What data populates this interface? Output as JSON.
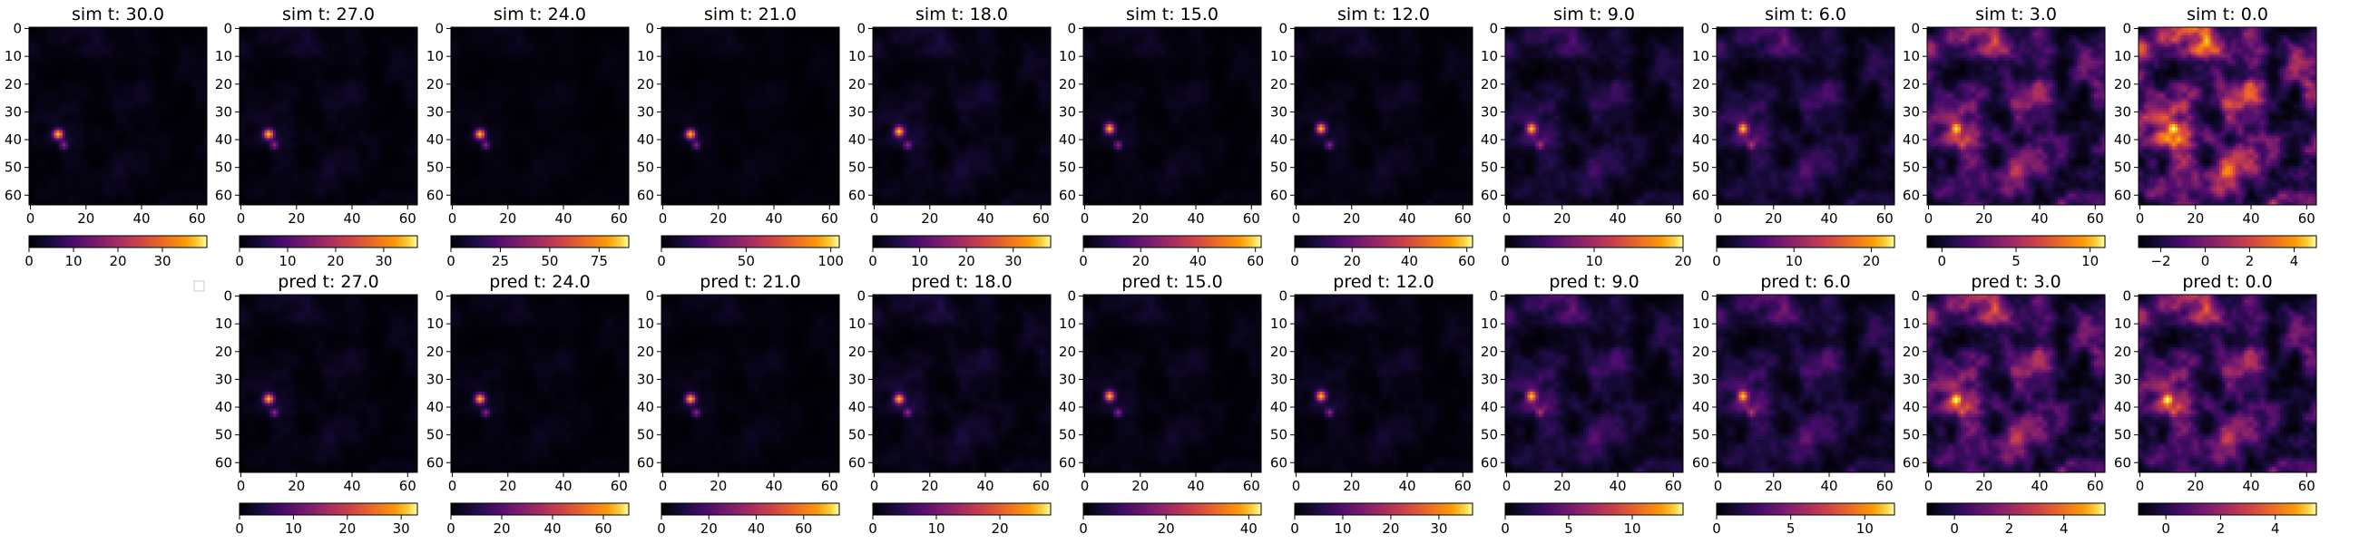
{
  "colors": {
    "background": "#ffffff",
    "axis": "#000000",
    "colormap": "inferno"
  },
  "legend_placeholder": true,
  "chart_data": [
    {
      "type": "heatmap",
      "row": "sim",
      "title": "sim t: 30.0",
      "grid_size": 64,
      "y_ticks": [
        0,
        10,
        20,
        30,
        40,
        50,
        60
      ],
      "x_ticks": [
        0,
        20,
        40,
        60
      ],
      "colorbar": {
        "range": [
          0,
          40
        ],
        "ticks": [
          0,
          10,
          20,
          30
        ]
      },
      "intensity": 0.06,
      "hot_spot": [
        10,
        38
      ]
    },
    {
      "type": "heatmap",
      "row": "sim",
      "title": "sim t: 27.0",
      "grid_size": 64,
      "y_ticks": [
        0,
        10,
        20,
        30,
        40,
        50,
        60
      ],
      "x_ticks": [
        0,
        20,
        40,
        60
      ],
      "colorbar": {
        "range": [
          0,
          37
        ],
        "ticks": [
          0,
          10,
          20,
          30
        ]
      },
      "intensity": 0.07,
      "hot_spot": [
        10,
        38
      ]
    },
    {
      "type": "heatmap",
      "row": "sim",
      "title": "sim t: 24.0",
      "grid_size": 64,
      "y_ticks": [
        0,
        10,
        20,
        30,
        40,
        50,
        60
      ],
      "x_ticks": [
        0,
        20,
        40,
        60
      ],
      "colorbar": {
        "range": [
          0,
          90
        ],
        "ticks": [
          0,
          25,
          50,
          75
        ]
      },
      "intensity": 0.04,
      "hot_spot": [
        10,
        38
      ]
    },
    {
      "type": "heatmap",
      "row": "sim",
      "title": "sim t: 21.0",
      "grid_size": 64,
      "y_ticks": [
        0,
        10,
        20,
        30,
        40,
        50,
        60
      ],
      "x_ticks": [
        0,
        20,
        40,
        60
      ],
      "colorbar": {
        "range": [
          0,
          105
        ],
        "ticks": [
          0,
          50,
          100
        ]
      },
      "intensity": 0.04,
      "hot_spot": [
        10,
        38
      ]
    },
    {
      "type": "heatmap",
      "row": "sim",
      "title": "sim t: 18.0",
      "grid_size": 64,
      "y_ticks": [
        0,
        10,
        20,
        30,
        40,
        50,
        60
      ],
      "x_ticks": [
        0,
        20,
        40,
        60
      ],
      "colorbar": {
        "range": [
          0,
          38
        ],
        "ticks": [
          0,
          10,
          20,
          30
        ]
      },
      "intensity": 0.09,
      "hot_spot": [
        9,
        37
      ]
    },
    {
      "type": "heatmap",
      "row": "sim",
      "title": "sim t: 15.0",
      "grid_size": 64,
      "y_ticks": [
        0,
        10,
        20,
        30,
        40,
        50,
        60
      ],
      "x_ticks": [
        0,
        20,
        40,
        60
      ],
      "colorbar": {
        "range": [
          0,
          62
        ],
        "ticks": [
          0,
          20,
          40,
          60
        ]
      },
      "intensity": 0.06,
      "hot_spot": [
        9,
        36
      ]
    },
    {
      "type": "heatmap",
      "row": "sim",
      "title": "sim t: 12.0",
      "grid_size": 64,
      "y_ticks": [
        0,
        10,
        20,
        30,
        40,
        50,
        60
      ],
      "x_ticks": [
        0,
        20,
        40,
        60
      ],
      "colorbar": {
        "range": [
          0,
          62
        ],
        "ticks": [
          0,
          20,
          40,
          60
        ]
      },
      "intensity": 0.07,
      "hot_spot": [
        9,
        36
      ]
    },
    {
      "type": "heatmap",
      "row": "sim",
      "title": "sim t: 9.0",
      "grid_size": 64,
      "y_ticks": [
        0,
        10,
        20,
        30,
        40,
        50,
        60
      ],
      "x_ticks": [
        0,
        20,
        40,
        60
      ],
      "colorbar": {
        "range": [
          0,
          20
        ],
        "ticks": [
          0,
          10,
          20
        ]
      },
      "intensity": 0.2,
      "hot_spot": [
        9,
        36
      ]
    },
    {
      "type": "heatmap",
      "row": "sim",
      "title": "sim t: 6.0",
      "grid_size": 64,
      "y_ticks": [
        0,
        10,
        20,
        30,
        40,
        50,
        60
      ],
      "x_ticks": [
        0,
        20,
        40,
        60
      ],
      "colorbar": {
        "range": [
          0,
          23
        ],
        "ticks": [
          0,
          10,
          20
        ]
      },
      "intensity": 0.24,
      "hot_spot": [
        9,
        36
      ]
    },
    {
      "type": "heatmap",
      "row": "sim",
      "title": "sim t: 3.0",
      "grid_size": 64,
      "y_ticks": [
        0,
        10,
        20,
        30,
        40,
        50,
        60
      ],
      "x_ticks": [
        0,
        20,
        40,
        60
      ],
      "colorbar": {
        "range": [
          -1,
          11
        ],
        "ticks": [
          0,
          5,
          10
        ]
      },
      "intensity": 0.48,
      "hot_spot": [
        10,
        36
      ]
    },
    {
      "type": "heatmap",
      "row": "sim",
      "title": "sim t: 0.0",
      "grid_size": 64,
      "y_ticks": [
        0,
        10,
        20,
        30,
        40,
        50,
        60
      ],
      "x_ticks": [
        0,
        20,
        40,
        60
      ],
      "colorbar": {
        "range": [
          -3,
          5
        ],
        "ticks": [
          -2,
          0,
          2,
          4
        ]
      },
      "intensity": 0.68,
      "hot_spot": [
        12,
        36
      ]
    },
    {
      "type": "heatmap",
      "row": "pred",
      "title": "pred t: 27.0",
      "grid_size": 64,
      "y_ticks": [
        0,
        10,
        20,
        30,
        40,
        50,
        60
      ],
      "x_ticks": [
        0,
        20,
        40,
        60
      ],
      "colorbar": {
        "range": [
          0,
          33
        ],
        "ticks": [
          0,
          10,
          20,
          30
        ]
      },
      "intensity": 0.07,
      "hot_spot": [
        10,
        37
      ]
    },
    {
      "type": "heatmap",
      "row": "pred",
      "title": "pred t: 24.0",
      "grid_size": 64,
      "y_ticks": [
        0,
        10,
        20,
        30,
        40,
        50,
        60
      ],
      "x_ticks": [
        0,
        20,
        40,
        60
      ],
      "colorbar": {
        "range": [
          0,
          70
        ],
        "ticks": [
          0,
          20,
          40,
          60
        ]
      },
      "intensity": 0.05,
      "hot_spot": [
        10,
        37
      ]
    },
    {
      "type": "heatmap",
      "row": "pred",
      "title": "pred t: 21.0",
      "grid_size": 64,
      "y_ticks": [
        0,
        10,
        20,
        30,
        40,
        50,
        60
      ],
      "x_ticks": [
        0,
        20,
        40,
        60
      ],
      "colorbar": {
        "range": [
          0,
          75
        ],
        "ticks": [
          0,
          20,
          40,
          60
        ]
      },
      "intensity": 0.05,
      "hot_spot": [
        10,
        37
      ]
    },
    {
      "type": "heatmap",
      "row": "pred",
      "title": "pred t: 18.0",
      "grid_size": 64,
      "y_ticks": [
        0,
        10,
        20,
        30,
        40,
        50,
        60
      ],
      "x_ticks": [
        0,
        20,
        40,
        60
      ],
      "colorbar": {
        "range": [
          0,
          28
        ],
        "ticks": [
          0,
          10,
          20
        ]
      },
      "intensity": 0.1,
      "hot_spot": [
        9,
        37
      ]
    },
    {
      "type": "heatmap",
      "row": "pred",
      "title": "pred t: 15.0",
      "grid_size": 64,
      "y_ticks": [
        0,
        10,
        20,
        30,
        40,
        50,
        60
      ],
      "x_ticks": [
        0,
        20,
        40,
        60
      ],
      "colorbar": {
        "range": [
          0,
          43
        ],
        "ticks": [
          0,
          20,
          40
        ]
      },
      "intensity": 0.07,
      "hot_spot": [
        9,
        36
      ]
    },
    {
      "type": "heatmap",
      "row": "pred",
      "title": "pred t: 12.0",
      "grid_size": 64,
      "y_ticks": [
        0,
        10,
        20,
        30,
        40,
        50,
        60
      ],
      "x_ticks": [
        0,
        20,
        40,
        60
      ],
      "colorbar": {
        "range": [
          0,
          37
        ],
        "ticks": [
          0,
          10,
          20,
          30
        ]
      },
      "intensity": 0.08,
      "hot_spot": [
        9,
        36
      ]
    },
    {
      "type": "heatmap",
      "row": "pred",
      "title": "pred t: 9.0",
      "grid_size": 64,
      "y_ticks": [
        0,
        10,
        20,
        30,
        40,
        50,
        60
      ],
      "x_ticks": [
        0,
        20,
        40,
        60
      ],
      "colorbar": {
        "range": [
          0,
          14
        ],
        "ticks": [
          0,
          5,
          10
        ]
      },
      "intensity": 0.24,
      "hot_spot": [
        9,
        36
      ]
    },
    {
      "type": "heatmap",
      "row": "pred",
      "title": "pred t: 6.0",
      "grid_size": 64,
      "y_ticks": [
        0,
        10,
        20,
        30,
        40,
        50,
        60
      ],
      "x_ticks": [
        0,
        20,
        40,
        60
      ],
      "colorbar": {
        "range": [
          0,
          12
        ],
        "ticks": [
          0,
          5,
          10
        ]
      },
      "intensity": 0.27,
      "hot_spot": [
        9,
        36
      ]
    },
    {
      "type": "heatmap",
      "row": "pred",
      "title": "pred t: 3.0",
      "grid_size": 64,
      "y_ticks": [
        0,
        10,
        20,
        30,
        40,
        50,
        60
      ],
      "x_ticks": [
        0,
        20,
        40,
        60
      ],
      "colorbar": {
        "range": [
          -1,
          5.5
        ],
        "ticks": [
          0,
          2,
          4
        ]
      },
      "intensity": 0.5,
      "hot_spot": [
        10,
        37
      ]
    },
    {
      "type": "heatmap",
      "row": "pred",
      "title": "pred t: 0.0",
      "grid_size": 64,
      "y_ticks": [
        0,
        10,
        20,
        30,
        40,
        50,
        60
      ],
      "x_ticks": [
        0,
        20,
        40,
        60
      ],
      "colorbar": {
        "range": [
          -1,
          5.5
        ],
        "ticks": [
          0,
          2,
          4
        ]
      },
      "intensity": 0.5,
      "hot_spot": [
        10,
        37
      ]
    }
  ]
}
